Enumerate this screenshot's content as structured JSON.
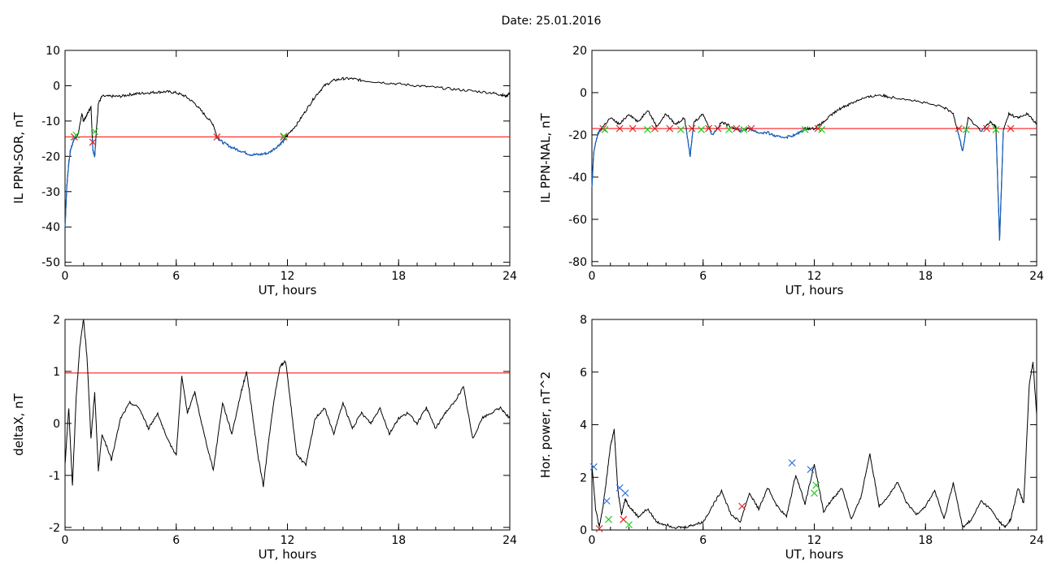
{
  "title": "Date:  25.01.2016",
  "colors": {
    "trace": "#000000",
    "below": "#1560bd",
    "threshold": "#ff0000",
    "mark_red": "#dd2222",
    "mark_green": "#22cc22",
    "mark_blue": "#3377dd"
  },
  "chart_data": [
    {
      "type": "line",
      "xlabel": "UT, hours",
      "ylabel": "IL PPN-SOR, nT",
      "xlim": [
        0,
        24
      ],
      "ylim": [
        -51,
        10
      ],
      "xticks": [
        0,
        6,
        12,
        18,
        24
      ],
      "yticks": [
        10,
        0,
        -10,
        -20,
        -30,
        -40,
        -50
      ],
      "threshold": -14.5,
      "series": [
        {
          "x": [
            0,
            0.1,
            0.2,
            0.3,
            0.5,
            0.7,
            0.9,
            1.0,
            1.2,
            1.4,
            1.5,
            1.6,
            1.7,
            1.8,
            2.0,
            2.5,
            3.0,
            3.5,
            4.0,
            4.5,
            5.0,
            5.5,
            6.0,
            6.5,
            7.0,
            7.5,
            8.0,
            8.2,
            8.5,
            9.0,
            9.5,
            10.0,
            10.5,
            11.0,
            11.5,
            11.8,
            12.0,
            12.5,
            13.0,
            13.5,
            14.0,
            14.5,
            15.0,
            15.5,
            16.0,
            17.0,
            18.0,
            19.0,
            20.0,
            21.0,
            22.0,
            23.0,
            23.5,
            23.8,
            24.0
          ],
          "y": [
            -40,
            -28,
            -22,
            -18,
            -15,
            -14,
            -8,
            -10,
            -8,
            -6,
            -18,
            -20,
            -12,
            -5,
            -3,
            -3,
            -3,
            -2.5,
            -2.2,
            -2,
            -1.8,
            -1.7,
            -2,
            -3,
            -5,
            -8,
            -11,
            -14.5,
            -16,
            -17.5,
            -18.5,
            -19.5,
            -19.5,
            -19,
            -17,
            -15.5,
            -14,
            -11,
            -7,
            -3,
            0,
            1.5,
            2,
            2,
            1.5,
            1,
            0.5,
            0,
            -0.5,
            -1,
            -1.5,
            -2,
            -2.5,
            -3,
            -2
          ]
        }
      ],
      "marks": [
        {
          "x": 0.5,
          "y": -14.5,
          "c": "red"
        },
        {
          "x": 0.6,
          "y": -14,
          "c": "green"
        },
        {
          "x": 1.5,
          "y": -16,
          "c": "red"
        },
        {
          "x": 1.6,
          "y": -13,
          "c": "green"
        },
        {
          "x": 8.2,
          "y": -14.5,
          "c": "red"
        },
        {
          "x": 11.8,
          "y": -14.5,
          "c": "red"
        },
        {
          "x": 11.8,
          "y": -14.3,
          "c": "green"
        }
      ]
    },
    {
      "type": "line",
      "xlabel": "UT, hours",
      "ylabel": "IL PPN-NAL, nT",
      "xlim": [
        0,
        24
      ],
      "ylim": [
        -82,
        20
      ],
      "xticks": [
        0,
        6,
        12,
        18,
        24
      ],
      "yticks": [
        20,
        0,
        -20,
        -40,
        -60,
        -80
      ],
      "threshold": -17,
      "series": [
        {
          "x": [
            0,
            0.1,
            0.3,
            0.5,
            1.0,
            1.5,
            2.0,
            2.5,
            3.0,
            3.5,
            4.0,
            4.5,
            5.0,
            5.3,
            5.5,
            6.0,
            6.5,
            7.0,
            7.5,
            8.0,
            8.5,
            9.0,
            9.5,
            10.0,
            10.5,
            11.0,
            11.5,
            12.0,
            12.5,
            13.0,
            13.5,
            14.0,
            14.5,
            15.0,
            15.5,
            16.0,
            17.0,
            18.0,
            19.0,
            19.5,
            19.8,
            20.0,
            20.3,
            21.0,
            21.5,
            21.8,
            22.0,
            22.2,
            22.5,
            23.0,
            23.5,
            24.0
          ],
          "y": [
            -45,
            -28,
            -20,
            -17,
            -12,
            -15,
            -10,
            -14,
            -8,
            -16,
            -10,
            -15,
            -12,
            -30,
            -14,
            -10,
            -20,
            -14,
            -16,
            -18,
            -17,
            -19,
            -19,
            -21,
            -21,
            -20,
            -17,
            -17,
            -14,
            -10,
            -7,
            -5,
            -3,
            -2,
            -1,
            -2,
            -3,
            -5,
            -7,
            -10,
            -20,
            -28,
            -12,
            -18,
            -14,
            -16,
            -70,
            -18,
            -10,
            -12,
            -10,
            -15
          ]
        }
      ],
      "marks": [
        {
          "x": 0.6,
          "y": -17,
          "c": "red"
        },
        {
          "x": 0.7,
          "y": -17.5,
          "c": "green"
        },
        {
          "x": 1.5,
          "y": -17,
          "c": "red"
        },
        {
          "x": 2.2,
          "y": -17,
          "c": "red"
        },
        {
          "x": 3.0,
          "y": -17.5,
          "c": "green"
        },
        {
          "x": 3.4,
          "y": -17,
          "c": "red"
        },
        {
          "x": 4.2,
          "y": -17,
          "c": "red"
        },
        {
          "x": 4.8,
          "y": -17.5,
          "c": "green"
        },
        {
          "x": 5.4,
          "y": -17,
          "c": "red"
        },
        {
          "x": 5.9,
          "y": -17.5,
          "c": "green"
        },
        {
          "x": 6.3,
          "y": -17,
          "c": "red"
        },
        {
          "x": 6.8,
          "y": -17,
          "c": "red"
        },
        {
          "x": 7.4,
          "y": -17.5,
          "c": "green"
        },
        {
          "x": 7.8,
          "y": -17,
          "c": "red"
        },
        {
          "x": 8.2,
          "y": -17.5,
          "c": "green"
        },
        {
          "x": 8.6,
          "y": -17,
          "c": "red"
        },
        {
          "x": 11.5,
          "y": -17.5,
          "c": "green"
        },
        {
          "x": 12.2,
          "y": -17,
          "c": "red"
        },
        {
          "x": 12.4,
          "y": -17.5,
          "c": "green"
        },
        {
          "x": 19.8,
          "y": -17,
          "c": "red"
        },
        {
          "x": 20.2,
          "y": -17.5,
          "c": "green"
        },
        {
          "x": 21.3,
          "y": -17,
          "c": "red"
        },
        {
          "x": 21.8,
          "y": -17.5,
          "c": "green"
        },
        {
          "x": 22.6,
          "y": -17,
          "c": "red"
        }
      ]
    },
    {
      "type": "line",
      "xlabel": "UT, hours",
      "ylabel": "deltaX, nT",
      "xlim": [
        0,
        24
      ],
      "ylim": [
        -2.05,
        2
      ],
      "xticks": [
        0,
        6,
        12,
        18,
        24
      ],
      "yticks": [
        2,
        1,
        0,
        -1,
        -2
      ],
      "threshold": 0.97,
      "series": [
        {
          "x": [
            0,
            0.2,
            0.4,
            0.6,
            0.8,
            1.0,
            1.2,
            1.4,
            1.6,
            1.8,
            2.0,
            2.5,
            3.0,
            3.5,
            4.0,
            4.5,
            5.0,
            5.5,
            6.0,
            6.3,
            6.6,
            7.0,
            7.5,
            8.0,
            8.5,
            9.0,
            9.5,
            9.8,
            10.1,
            10.4,
            10.7,
            11.0,
            11.3,
            11.6,
            11.9,
            12.2,
            12.5,
            13.0,
            13.5,
            14.0,
            14.5,
            15.0,
            15.5,
            16.0,
            16.5,
            17.0,
            17.5,
            18.0,
            18.5,
            19.0,
            19.5,
            20.0,
            20.5,
            21.0,
            21.5,
            22.0,
            22.5,
            23.0,
            23.5,
            24.0
          ],
          "y": [
            -0.8,
            0.3,
            -1.2,
            0.5,
            1.5,
            2.0,
            1.2,
            -0.3,
            0.6,
            -0.9,
            -0.2,
            -0.7,
            0.1,
            0.4,
            0.3,
            -0.1,
            0.2,
            -0.3,
            -0.6,
            0.9,
            0.2,
            0.6,
            -0.2,
            -0.9,
            0.4,
            -0.2,
            0.6,
            1.0,
            0.2,
            -0.6,
            -1.2,
            -0.3,
            0.5,
            1.1,
            1.2,
            0.3,
            -0.6,
            -0.8,
            0.1,
            0.3,
            -0.2,
            0.4,
            -0.1,
            0.2,
            0.0,
            0.3,
            -0.2,
            0.1,
            0.2,
            0.0,
            0.3,
            -0.1,
            0.2,
            0.4,
            0.7,
            -0.3,
            0.1,
            0.2,
            0.3,
            0.1
          ]
        }
      ]
    },
    {
      "type": "line",
      "xlabel": "UT, hours",
      "ylabel": "Hor. power, nT^2",
      "xlim": [
        0,
        24
      ],
      "ylim": [
        0,
        8
      ],
      "xticks": [
        0,
        6,
        12,
        18,
        24
      ],
      "yticks": [
        8,
        6,
        4,
        2,
        0
      ],
      "series": [
        {
          "x": [
            0,
            0.2,
            0.4,
            0.6,
            0.8,
            1.0,
            1.2,
            1.4,
            1.6,
            1.8,
            2.0,
            2.5,
            3.0,
            3.5,
            4.0,
            4.5,
            5.0,
            5.5,
            6.0,
            6.5,
            7.0,
            7.5,
            8.0,
            8.5,
            9.0,
            9.5,
            10.0,
            10.5,
            11.0,
            11.5,
            12.0,
            12.5,
            13.0,
            13.5,
            14.0,
            14.5,
            15.0,
            15.5,
            16.0,
            16.5,
            17.0,
            17.5,
            18.0,
            18.5,
            19.0,
            19.5,
            20.0,
            20.5,
            21.0,
            21.5,
            22.0,
            22.3,
            22.6,
            23.0,
            23.3,
            23.6,
            23.8,
            24.0
          ],
          "y": [
            2.5,
            0.8,
            0.1,
            0.9,
            2.0,
            3.2,
            3.8,
            1.5,
            0.6,
            1.2,
            0.9,
            0.5,
            0.8,
            0.3,
            0.2,
            0.1,
            0.1,
            0.2,
            0.3,
            0.9,
            1.5,
            0.6,
            0.3,
            1.4,
            0.8,
            1.6,
            0.9,
            0.5,
            2.1,
            1.0,
            2.5,
            0.7,
            1.2,
            1.6,
            0.4,
            1.2,
            2.9,
            0.9,
            1.3,
            1.8,
            1.0,
            0.6,
            0.9,
            1.5,
            0.4,
            1.8,
            0.1,
            0.4,
            1.1,
            0.8,
            0.3,
            0.1,
            0.4,
            1.6,
            1.0,
            5.5,
            6.4,
            4.4
          ]
        }
      ],
      "marks": [
        {
          "x": 0.1,
          "y": 2.4,
          "c": "blue"
        },
        {
          "x": 0.4,
          "y": 0.05,
          "c": "red"
        },
        {
          "x": 0.8,
          "y": 1.1,
          "c": "blue"
        },
        {
          "x": 0.9,
          "y": 0.4,
          "c": "green"
        },
        {
          "x": 1.5,
          "y": 1.6,
          "c": "blue"
        },
        {
          "x": 1.8,
          "y": 1.4,
          "c": "blue"
        },
        {
          "x": 1.7,
          "y": 0.4,
          "c": "red"
        },
        {
          "x": 2.0,
          "y": 0.2,
          "c": "green"
        },
        {
          "x": 8.1,
          "y": 0.9,
          "c": "red"
        },
        {
          "x": 10.8,
          "y": 2.55,
          "c": "blue"
        },
        {
          "x": 11.8,
          "y": 2.3,
          "c": "blue"
        },
        {
          "x": 12.0,
          "y": 1.4,
          "c": "green"
        },
        {
          "x": 12.1,
          "y": 1.7,
          "c": "green"
        }
      ]
    }
  ]
}
